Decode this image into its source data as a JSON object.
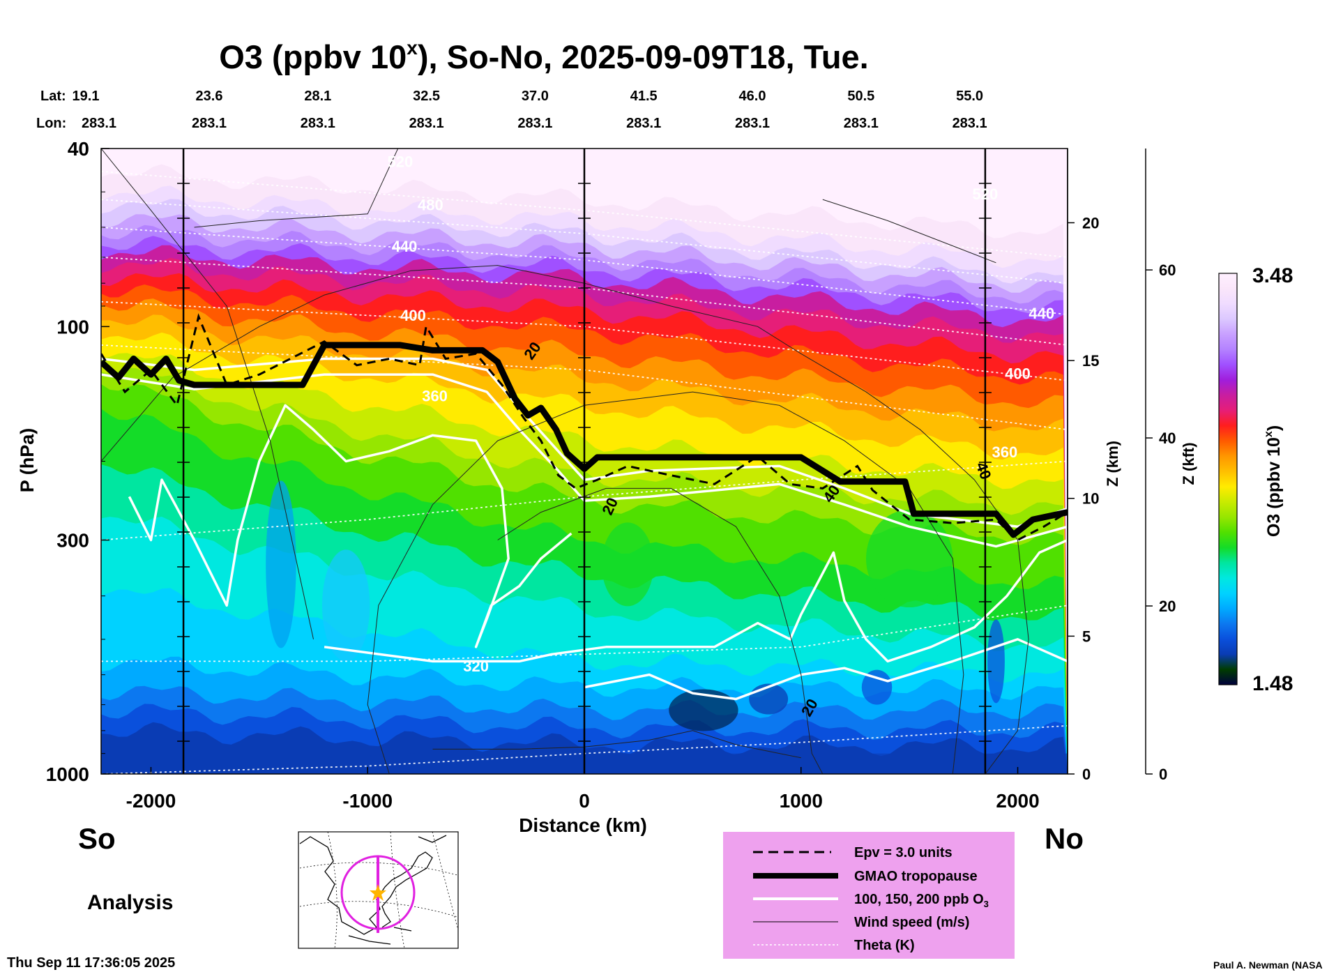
{
  "chart_data": {
    "type": "heatmap",
    "title": "O3 (ppbv 10",
    "title_sup": "x",
    "title_rest": "), So-No, 2025-09-09T18, Tue.",
    "xlabel": "Distance (km)",
    "ylabel": "P (hPa)",
    "z_km_label": "Z (km)",
    "z_kft_label": "Z (kft)",
    "colorbar_label": "O3 (ppbv 10",
    "colorbar_sup": "x",
    "colorbar_label_end": ")",
    "colorbar_max": "3.48",
    "colorbar_min": "1.48",
    "colorbar_range": [
      1.48,
      3.48
    ],
    "xlim": [
      -2230,
      2230
    ],
    "ylim_hPa": [
      1000,
      40
    ],
    "x_ticks": [
      -2000,
      -1000,
      0,
      1000,
      2000
    ],
    "y_ticks": [
      40,
      100,
      300,
      1000
    ],
    "z_km_ticks": [
      0,
      5,
      10,
      15,
      20
    ],
    "z_kft_ticks": [
      0,
      20,
      40,
      60
    ],
    "lat_label": "Lat:",
    "lon_label": "Lon:",
    "lats": [
      "19.1",
      "23.6",
      "28.1",
      "32.5",
      "37.0",
      "41.5",
      "46.0",
      "50.5",
      "55.0"
    ],
    "lons": [
      "283.1",
      "283.1",
      "283.1",
      "283.1",
      "283.1",
      "283.1",
      "283.1",
      "283.1",
      "283.1"
    ],
    "section_markers_km": [
      -1850,
      0,
      1850
    ],
    "theta_labels": [
      {
        "text": "520",
        "x": -850,
        "p": 44
      },
      {
        "text": "480",
        "x": -710,
        "p": 55
      },
      {
        "text": "440",
        "x": -830,
        "p": 68
      },
      {
        "text": "400",
        "x": -790,
        "p": 97
      },
      {
        "text": "360",
        "x": -690,
        "p": 147
      },
      {
        "text": "320",
        "x": -500,
        "p": 590
      },
      {
        "text": "520",
        "x": 1850,
        "p": 52
      },
      {
        "text": "440",
        "x": 2110,
        "p": 96
      },
      {
        "text": "400",
        "x": 2000,
        "p": 131
      },
      {
        "text": "360",
        "x": 1940,
        "p": 196
      }
    ],
    "wind_labels": [
      {
        "text": "20",
        "x": -220,
        "p": 115,
        "rot": -55
      },
      {
        "text": "20",
        "x": 140,
        "p": 255,
        "rot": -65
      },
      {
        "text": "20",
        "x": 1060,
        "p": 720,
        "rot": -60
      },
      {
        "text": "40",
        "x": 1820,
        "p": 212,
        "rot": 70
      },
      {
        "text": "40",
        "x": 1160,
        "p": 240,
        "rot": -55
      }
    ],
    "tropopause_hPa": [
      [
        -2230,
        120
      ],
      [
        -2150,
        130
      ],
      [
        -2080,
        118
      ],
      [
        -2000,
        128
      ],
      [
        -1930,
        118
      ],
      [
        -1870,
        132
      ],
      [
        -1800,
        135
      ],
      [
        -1300,
        135
      ],
      [
        -1200,
        110
      ],
      [
        -850,
        110
      ],
      [
        -700,
        113
      ],
      [
        -470,
        113
      ],
      [
        -400,
        120
      ],
      [
        -320,
        145
      ],
      [
        -260,
        158
      ],
      [
        -200,
        152
      ],
      [
        -130,
        170
      ],
      [
        -80,
        192
      ],
      [
        0,
        208
      ],
      [
        60,
        196
      ],
      [
        1000,
        196
      ],
      [
        1180,
        222
      ],
      [
        1480,
        222
      ],
      [
        1520,
        262
      ],
      [
        1900,
        262
      ],
      [
        1980,
        292
      ],
      [
        2070,
        270
      ],
      [
        2230,
        260
      ]
    ],
    "epv_hPa": [
      [
        -2230,
        115
      ],
      [
        -2120,
        140
      ],
      [
        -2000,
        125
      ],
      [
        -1880,
        150
      ],
      [
        -1780,
        95
      ],
      [
        -1650,
        135
      ],
      [
        -1500,
        128
      ],
      [
        -1200,
        108
      ],
      [
        -1050,
        122
      ],
      [
        -900,
        118
      ],
      [
        -760,
        122
      ],
      [
        -730,
        100
      ],
      [
        -640,
        118
      ],
      [
        -500,
        115
      ],
      [
        -380,
        135
      ],
      [
        -280,
        160
      ],
      [
        -200,
        180
      ],
      [
        -120,
        215
      ],
      [
        -40,
        230
      ],
      [
        60,
        220
      ],
      [
        200,
        205
      ],
      [
        400,
        215
      ],
      [
        600,
        225
      ],
      [
        800,
        195
      ],
      [
        950,
        225
      ],
      [
        1100,
        230
      ],
      [
        1260,
        205
      ],
      [
        1330,
        232
      ],
      [
        1500,
        270
      ],
      [
        1700,
        275
      ],
      [
        1900,
        270
      ],
      [
        2000,
        300
      ],
      [
        2120,
        280
      ],
      [
        2230,
        260
      ]
    ],
    "legend": [
      {
        "style": "dashed",
        "label": "Epv = 3.0 units"
      },
      {
        "style": "thick",
        "label": "GMAO tropopause"
      },
      {
        "style": "white",
        "label": "100, 150, 200 ppb O"
      },
      {
        "style": "thin",
        "label": "Wind speed (m/s)"
      },
      {
        "style": "dotted",
        "label": "Theta (K)"
      }
    ],
    "legend_sub": "3"
  },
  "labels": {
    "south": "So",
    "north": "No",
    "analysis": "Analysis",
    "timestamp": "Thu Sep 11 17:36:05 2025",
    "credit": "Paul A. Newman (NASA"
  },
  "colors": {
    "ramp": [
      "#00003c",
      "#003c00",
      "#0a3cb4",
      "#0a50dc",
      "#0c78f0",
      "#00aaff",
      "#00d2ff",
      "#00e8e0",
      "#00e6a0",
      "#14dc28",
      "#50e000",
      "#96e600",
      "#c8eb00",
      "#ffeb00",
      "#ffbe00",
      "#ff9600",
      "#ff5a00",
      "#ff1e1e",
      "#e61e78",
      "#c81ea0",
      "#a01edc",
      "#a050ff",
      "#b482ff",
      "#c8a0ff",
      "#dcc8ff",
      "#f0dcff",
      "#fae6fa",
      "#fff0ff"
    ],
    "legend_bg": "#eea1ee",
    "map_circle": "#e020e0",
    "star": "#ffb400"
  }
}
